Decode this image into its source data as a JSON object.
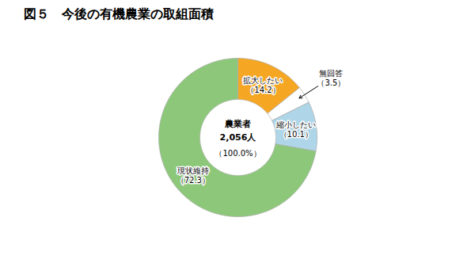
{
  "chart_data": {
    "type": "pie",
    "title": "図５　今後の有機農業の取組面積",
    "categories": [
      "拡大したい",
      "無回答",
      "縮小したい",
      "現状維持"
    ],
    "values": [
      14.2,
      3.5,
      10.1,
      72.3
    ],
    "colors": [
      "#F5A623",
      "#FFFFFF",
      "#AED6E8",
      "#8DC87A"
    ],
    "data_labels": true,
    "value_labels": [
      "（14.2）",
      "（3.5）",
      "（10.1）",
      "（72.3）"
    ],
    "annotations": [
      "農業者",
      "2,056人",
      "（100.0%）"
    ]
  }
}
